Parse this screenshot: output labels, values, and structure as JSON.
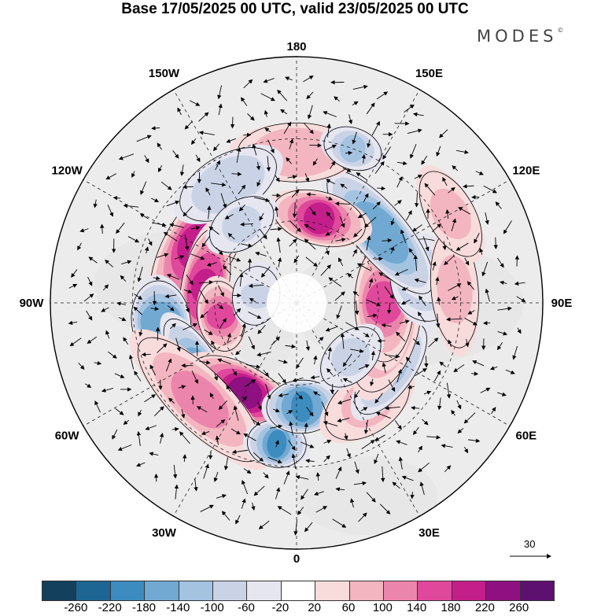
{
  "title": "Base 17/05/2025 00 UTC, valid 23/05/2025 00 UTC",
  "brand": "MODES",
  "brand_mark": "©",
  "longitude_labels": [
    {
      "text": "180",
      "angle": 0
    },
    {
      "text": "150E",
      "angle": 30
    },
    {
      "text": "120E",
      "angle": 60
    },
    {
      "text": "90E",
      "angle": 90
    },
    {
      "text": "60E",
      "angle": 120
    },
    {
      "text": "30E",
      "angle": 150
    },
    {
      "text": "0",
      "angle": 180
    },
    {
      "text": "30W",
      "angle": 210
    },
    {
      "text": "60W",
      "angle": 240
    },
    {
      "text": "90W",
      "angle": 270
    },
    {
      "text": "120W",
      "angle": 300
    },
    {
      "text": "150W",
      "angle": 330
    }
  ],
  "reference_vector": {
    "value": "30"
  },
  "colorbar": {
    "labels": [
      "-260",
      "-220",
      "-180",
      "-140",
      "-100",
      "-60",
      "-20",
      "20",
      "60",
      "100",
      "140",
      "180",
      "220",
      "260"
    ],
    "colors": [
      "#13405d",
      "#1d6694",
      "#3c8cc0",
      "#71a9d2",
      "#a3c3e1",
      "#cad3e6",
      "#e5e6f0",
      "#ffffff",
      "#f8dcdc",
      "#f3b6c0",
      "#ec85ac",
      "#e0489c",
      "#c41e8a",
      "#8f1181",
      "#5e1070"
    ]
  },
  "colors": {
    "land_mask": "#ececec",
    "ocean": "#ffffff",
    "accent": "#000000"
  },
  "anomalies": [
    {
      "lon": -120,
      "lat": 49,
      "value": 200,
      "rx": 0.13,
      "ry": 0.06
    },
    {
      "lon": -100,
      "lat": 56,
      "value": 210,
      "rx": 0.1,
      "ry": 0.04
    },
    {
      "lon": -80,
      "lat": 62,
      "value": 160,
      "rx": 0.06,
      "ry": 0.04
    },
    {
      "lon": -82,
      "lat": 40,
      "value": -180,
      "rx": 0.07,
      "ry": 0.05
    },
    {
      "lon": -58,
      "lat": 47,
      "value": -150,
      "rx": 0.09,
      "ry": 0.035
    },
    {
      "lon": -30,
      "lat": 52,
      "value": 230,
      "rx": 0.1,
      "ry": 0.045
    },
    {
      "lon": -45,
      "lat": 40,
      "value": 120,
      "rx": 0.14,
      "ry": 0.05
    },
    {
      "lon": -8,
      "lat": 38,
      "value": -200,
      "rx": 0.05,
      "ry": 0.04
    },
    {
      "lon": 3,
      "lat": 52,
      "value": -210,
      "rx": 0.06,
      "ry": 0.045
    },
    {
      "lon": 35,
      "lat": 45,
      "value": 80,
      "rx": 0.08,
      "ry": 0.05
    },
    {
      "lon": 55,
      "lat": 48,
      "value": -130,
      "rx": 0.09,
      "ry": 0.04
    },
    {
      "lon": 70,
      "lat": 55,
      "value": 100,
      "rx": 0.1,
      "ry": 0.05
    },
    {
      "lon": 90,
      "lat": 58,
      "value": 140,
      "rx": 0.1,
      "ry": 0.05
    },
    {
      "lon": 100,
      "lat": 42,
      "value": -120,
      "rx": 0.07,
      "ry": 0.06
    },
    {
      "lon": 130,
      "lat": 50,
      "value": -180,
      "rx": 0.13,
      "ry": 0.045
    },
    {
      "lon": 165,
      "lat": 58,
      "value": 200,
      "rx": 0.08,
      "ry": 0.045
    },
    {
      "lon": 180,
      "lat": 35,
      "value": 90,
      "rx": 0.1,
      "ry": 0.05
    },
    {
      "lon": 160,
      "lat": 30,
      "value": -110,
      "rx": 0.05,
      "ry": 0.035
    },
    {
      "lon": -150,
      "lat": 40,
      "value": -100,
      "rx": 0.09,
      "ry": 0.05
    },
    {
      "lon": -145,
      "lat": 55,
      "value": -70,
      "rx": 0.06,
      "ry": 0.04
    },
    {
      "lon": 95,
      "lat": 32,
      "value": 70,
      "rx": 0.1,
      "ry": 0.04
    },
    {
      "lon": 120,
      "lat": 25,
      "value": 60,
      "rx": 0.08,
      "ry": 0.04
    },
    {
      "lon": -100,
      "lat": 75,
      "value": -90,
      "rx": 0.05,
      "ry": 0.04
    },
    {
      "lon": 45,
      "lat": 62,
      "value": -70,
      "rx": 0.06,
      "ry": 0.04
    }
  ]
}
